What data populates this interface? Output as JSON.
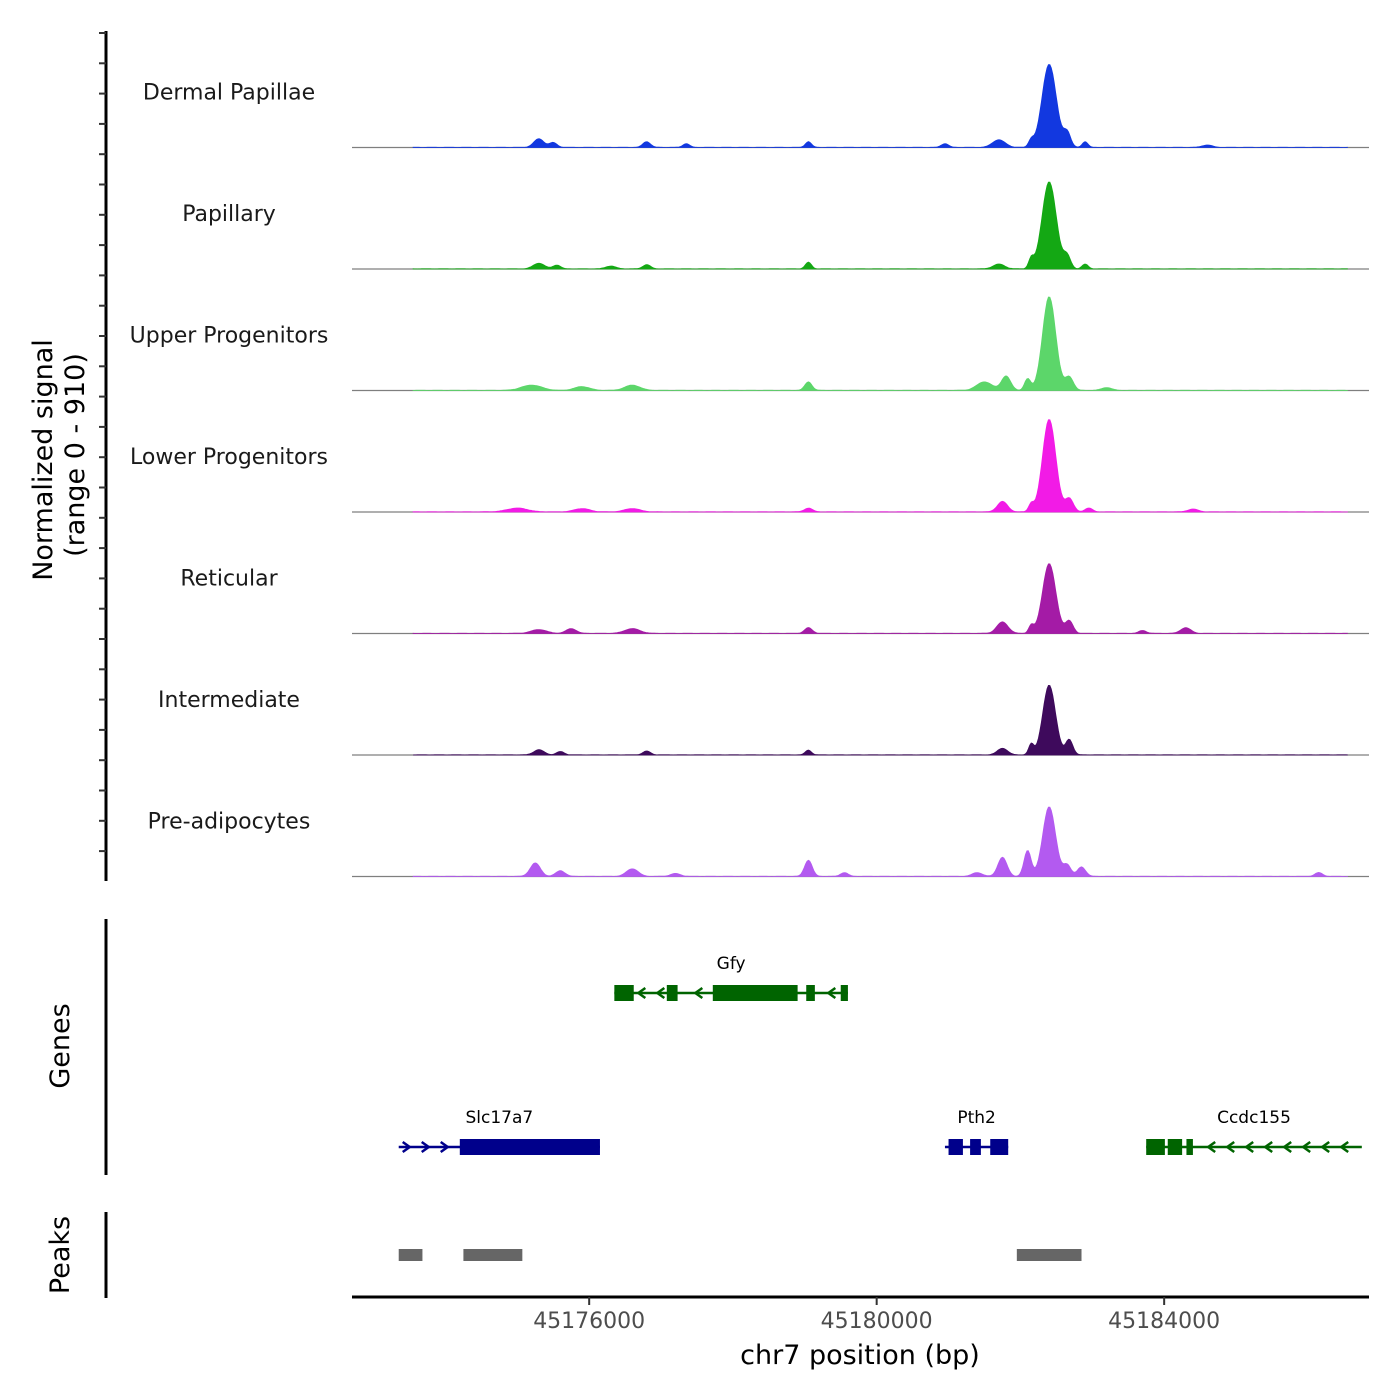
{
  "chart_data": {
    "type": "area",
    "region": {
      "chrom": "chr7",
      "start": 45172700,
      "end": 45186850
    },
    "ylabel": "Normalized signal",
    "ylabel_range": "(range 0 - 910)",
    "ylim": [
      0,
      910
    ],
    "xlabel": "chr7 position (bp)",
    "x_ticks": [
      45176000,
      45180000,
      45184000
    ],
    "x_tick_labels": [
      "45176000",
      "45180000",
      "45184000"
    ],
    "tracks": [
      {
        "name": "Dermal Papillae",
        "color": "#1238E0",
        "peaks": [
          [
            45175300,
            90,
            200
          ],
          [
            45175500,
            50,
            150
          ],
          [
            45176800,
            60,
            150
          ],
          [
            45177350,
            40,
            130
          ],
          [
            45179050,
            60,
            120
          ],
          [
            45180950,
            40,
            140
          ],
          [
            45181700,
            80,
            250
          ],
          [
            45182150,
            70,
            100
          ],
          [
            45182400,
            870,
            280
          ],
          [
            45182650,
            150,
            140
          ],
          [
            45182900,
            60,
            110
          ],
          [
            45184600,
            25,
            200
          ]
        ]
      },
      {
        "name": "Papillary",
        "color": "#14A814",
        "peaks": [
          [
            45175300,
            60,
            220
          ],
          [
            45175550,
            40,
            150
          ],
          [
            45176300,
            30,
            200
          ],
          [
            45176800,
            45,
            150
          ],
          [
            45179050,
            70,
            120
          ],
          [
            45181700,
            50,
            230
          ],
          [
            45182150,
            100,
            100
          ],
          [
            45182400,
            910,
            280
          ],
          [
            45182650,
            130,
            140
          ],
          [
            45182900,
            50,
            120
          ]
        ]
      },
      {
        "name": "Upper Progenitors",
        "color": "#5CD66A",
        "peaks": [
          [
            45175200,
            55,
            400
          ],
          [
            45175900,
            40,
            300
          ],
          [
            45176600,
            55,
            300
          ],
          [
            45179050,
            90,
            140
          ],
          [
            45181500,
            90,
            300
          ],
          [
            45181800,
            150,
            180
          ],
          [
            45182100,
            120,
            120
          ],
          [
            45182400,
            980,
            260
          ],
          [
            45182680,
            140,
            160
          ],
          [
            45183200,
            30,
            200
          ]
        ]
      },
      {
        "name": "Lower Progenitors",
        "color": "#F21BE6",
        "peaks": [
          [
            45175000,
            40,
            400
          ],
          [
            45175900,
            35,
            300
          ],
          [
            45176600,
            35,
            300
          ],
          [
            45179050,
            40,
            160
          ],
          [
            45181750,
            110,
            200
          ],
          [
            45182150,
            80,
            100
          ],
          [
            45182400,
            970,
            260
          ],
          [
            45182680,
            140,
            160
          ],
          [
            45182950,
            40,
            150
          ],
          [
            45184400,
            30,
            200
          ]
        ]
      },
      {
        "name": "Reticular",
        "color": "#A41BA6",
        "peaks": [
          [
            45175300,
            40,
            300
          ],
          [
            45175750,
            50,
            200
          ],
          [
            45176600,
            50,
            300
          ],
          [
            45179050,
            60,
            150
          ],
          [
            45181750,
            120,
            220
          ],
          [
            45182150,
            80,
            100
          ],
          [
            45182400,
            730,
            260
          ],
          [
            45182680,
            130,
            150
          ],
          [
            45183700,
            30,
            150
          ],
          [
            45184300,
            60,
            200
          ]
        ]
      },
      {
        "name": "Intermediate",
        "color": "#3E0A5C",
        "peaks": [
          [
            45175300,
            55,
            200
          ],
          [
            45175600,
            35,
            150
          ],
          [
            45176800,
            40,
            150
          ],
          [
            45179050,
            50,
            120
          ],
          [
            45181750,
            70,
            200
          ],
          [
            45182150,
            110,
            100
          ],
          [
            45182400,
            730,
            250
          ],
          [
            45182680,
            160,
            140
          ]
        ]
      },
      {
        "name": "Pre-adipocytes",
        "color": "#B35AF0",
        "peaks": [
          [
            45175250,
            140,
            200
          ],
          [
            45175600,
            60,
            180
          ],
          [
            45176600,
            80,
            230
          ],
          [
            45177200,
            30,
            200
          ],
          [
            45179050,
            170,
            150
          ],
          [
            45179550,
            40,
            150
          ],
          [
            45181400,
            40,
            200
          ],
          [
            45181750,
            200,
            180
          ],
          [
            45182100,
            270,
            140
          ],
          [
            45182400,
            730,
            250
          ],
          [
            45182650,
            120,
            150
          ],
          [
            45182850,
            100,
            160
          ],
          [
            45186150,
            40,
            150
          ]
        ]
      }
    ],
    "genes": [
      {
        "name": "Gfy",
        "strand": "-",
        "color": "#006400",
        "row": 1,
        "start": 45176350,
        "end": 45179600,
        "exons": [
          [
            45176350,
            45176620
          ],
          [
            45177080,
            45177230
          ],
          [
            45177720,
            45178900
          ],
          [
            45179020,
            45179140
          ],
          [
            45179500,
            45179600
          ]
        ]
      },
      {
        "name": "Slc17a7",
        "strand": "+",
        "color": "#00008B",
        "row": 2,
        "start": 45173350,
        "end": 45176150,
        "exons": [
          [
            45174200,
            45176150
          ]
        ]
      },
      {
        "name": "Pth2",
        "strand": "+",
        "color": "#00008B",
        "row": 2,
        "start": 45180950,
        "end": 45181830,
        "exons": [
          [
            45181000,
            45181200
          ],
          [
            45181300,
            45181450
          ],
          [
            45181580,
            45181830
          ]
        ]
      },
      {
        "name": "Ccdc155",
        "strand": "-",
        "color": "#006400",
        "row": 2,
        "start": 45183750,
        "end": 45186750,
        "exons": [
          [
            45183750,
            45184010
          ],
          [
            45184050,
            45184250
          ],
          [
            45184310,
            45184400
          ]
        ]
      }
    ],
    "peak_regions": [
      [
        45173350,
        45173680
      ],
      [
        45174250,
        45175070
      ],
      [
        45181950,
        45182850
      ]
    ]
  }
}
